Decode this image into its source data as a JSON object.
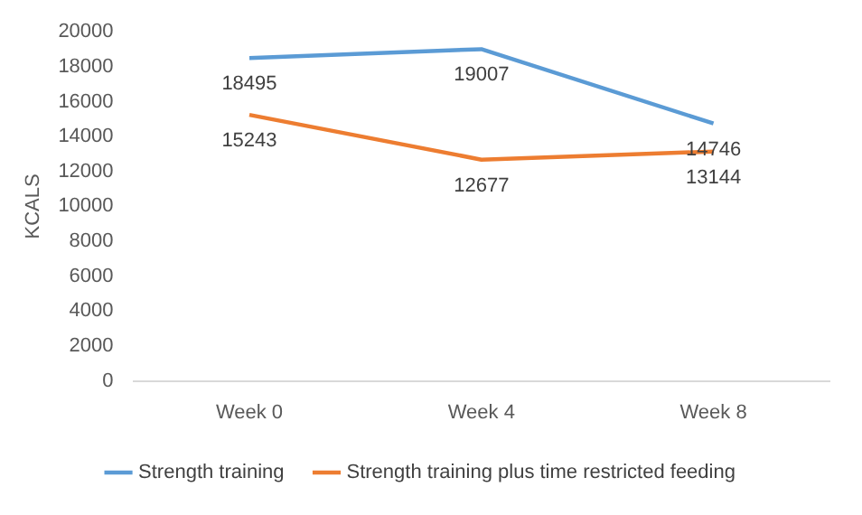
{
  "chart_data": {
    "type": "line",
    "ylabel": "KCALS",
    "categories": [
      "Week 0",
      "Week 4",
      "Week 8"
    ],
    "series": [
      {
        "name": "Strength training",
        "color": "#5b9bd5",
        "values": [
          18495,
          19007,
          14746
        ]
      },
      {
        "name": "Strength training plus time restricted feeding",
        "color": "#ed7d31",
        "values": [
          15243,
          12677,
          13144
        ]
      }
    ],
    "ylim": [
      0,
      20000
    ],
    "yticks": [
      0,
      2000,
      4000,
      6000,
      8000,
      10000,
      12000,
      14000,
      16000,
      18000,
      20000
    ],
    "grid": false,
    "legend": "bottom",
    "marker": "none",
    "line_style": "solid",
    "data_labels": true
  }
}
